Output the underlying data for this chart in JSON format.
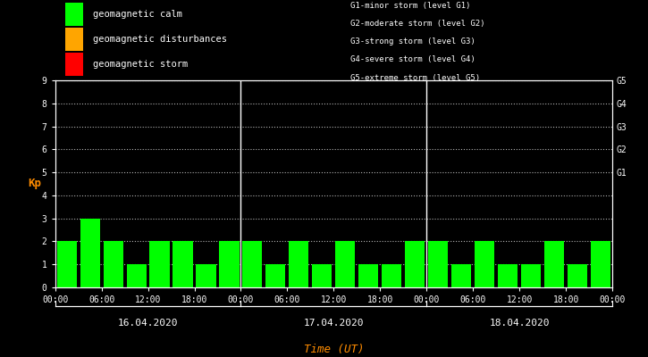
{
  "background_color": "#000000",
  "bar_color_calm": "#00ff00",
  "bar_color_disturbance": "#ffa500",
  "bar_color_storm": "#ff0000",
  "ylabel": "Kp",
  "xlabel": "Time (UT)",
  "ylabel_color": "#ff8c00",
  "xlabel_color": "#ff8c00",
  "tick_color": "#ffffff",
  "label_color": "#ffffff",
  "ylim": [
    0,
    9
  ],
  "yticks": [
    0,
    1,
    2,
    3,
    4,
    5,
    6,
    7,
    8,
    9
  ],
  "days": [
    "16.04.2020",
    "17.04.2020",
    "18.04.2020"
  ],
  "kp_values": [
    2,
    3,
    2,
    1,
    2,
    2,
    1,
    2,
    2,
    1,
    2,
    1,
    2,
    1,
    1,
    2,
    2,
    1,
    2,
    1,
    1,
    2,
    1,
    2
  ],
  "g_labels": [
    "G5",
    "G4",
    "G3",
    "G2",
    "G1"
  ],
  "g_label_kp": [
    9,
    8,
    7,
    6,
    5
  ],
  "legend_items": [
    {
      "label": "geomagnetic calm",
      "color": "#00ff00"
    },
    {
      "label": "geomagnetic disturbances",
      "color": "#ffa500"
    },
    {
      "label": "geomagnetic storm",
      "color": "#ff0000"
    }
  ],
  "storm_labels": [
    "G1-minor storm (level G1)",
    "G2-moderate storm (level G2)",
    "G3-strong storm (level G3)",
    "G4-severe storm (level G4)",
    "G5-extreme storm (level G5)"
  ],
  "xtick_labels_per_day": [
    "00:00",
    "06:00",
    "12:00",
    "18:00"
  ],
  "num_bars_per_day": 8,
  "num_days": 3,
  "font_size_legend": 7.5,
  "font_size_storm": 6.5,
  "font_size_tick": 7,
  "font_size_ylabel": 9,
  "font_size_xlabel": 9,
  "font_size_date": 8
}
